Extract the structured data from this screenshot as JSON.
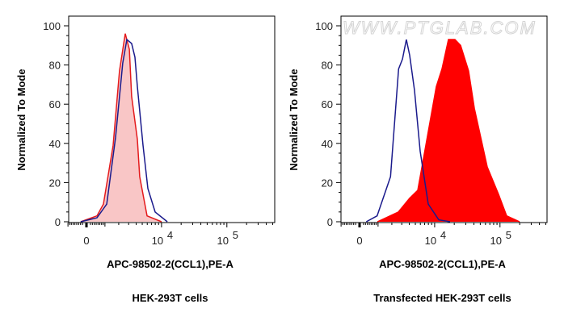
{
  "watermark": "WWW.PTGLAB.COM",
  "chart_data": [
    {
      "type": "area",
      "title": "HEK-293T cells",
      "xlabel": "APC-98502-2(CCL1),PE-A",
      "ylabel": "Normalized To Mode",
      "xscale": "biexponential",
      "xticks": [
        {
          "value": 0,
          "label": "0"
        },
        {
          "value": 10000,
          "label": "10",
          "exp": "4"
        },
        {
          "value": 100000,
          "label": "10",
          "exp": "5"
        }
      ],
      "yticks": [
        0,
        20,
        40,
        60,
        80,
        100
      ],
      "ylim": [
        0,
        100
      ],
      "series": [
        {
          "color": "#e41a1c",
          "fill": "#f9c6c6",
          "x": [
            -290,
            540,
            910,
            1550,
            2070,
            2620,
            3080,
            3370,
            4180,
            4560,
            5960,
            10000
          ],
          "y": [
            0,
            3,
            9,
            39,
            77,
            96,
            88,
            64,
            42,
            23,
            3,
            0
          ]
        },
        {
          "color": "#1a1a8c",
          "fill": "none",
          "x": [
            -290,
            540,
            1110,
            1740,
            2370,
            2800,
            3370,
            3820,
            4180,
            5140,
            6140,
            7960,
            12270
          ],
          "y": [
            0,
            2,
            9,
            43,
            81,
            93,
            91,
            84,
            69,
            39,
            17,
            5,
            0
          ]
        }
      ]
    },
    {
      "type": "area",
      "title": "Transfected HEK-293T cells",
      "xlabel": "APC-98502-2(CCL1),PE-A",
      "ylabel": "Normalized To Mode",
      "xscale": "biexponential",
      "xticks": [
        {
          "value": 0,
          "label": "0"
        },
        {
          "value": 10000,
          "label": "10",
          "exp": "4"
        },
        {
          "value": 100000,
          "label": "10",
          "exp": "5"
        }
      ],
      "yticks": [
        0,
        20,
        40,
        60,
        80,
        100
      ],
      "ylim": [
        0,
        100
      ],
      "series": [
        {
          "color": "#ff0000",
          "fill": "#ff0000",
          "x": [
            960,
            2620,
            4050,
            5450,
            7300,
            10630,
            12970,
            16300,
            20480,
            25000,
            33150,
            40540,
            63860,
            95000,
            126280,
            198890
          ],
          "y": [
            0,
            5,
            12,
            16,
            39,
            69,
            78,
            93,
            93,
            90,
            77,
            58,
            28,
            14,
            3,
            0
          ]
        },
        {
          "color": "#1a1a8c",
          "fill": "none",
          "x": [
            340,
            940,
            1890,
            2650,
            3080,
            3580,
            4050,
            4850,
            5960,
            7960,
            11570,
            17260
          ],
          "y": [
            0,
            3,
            23,
            78,
            83,
            93,
            85,
            67,
            36,
            9,
            1,
            0
          ]
        }
      ]
    }
  ]
}
